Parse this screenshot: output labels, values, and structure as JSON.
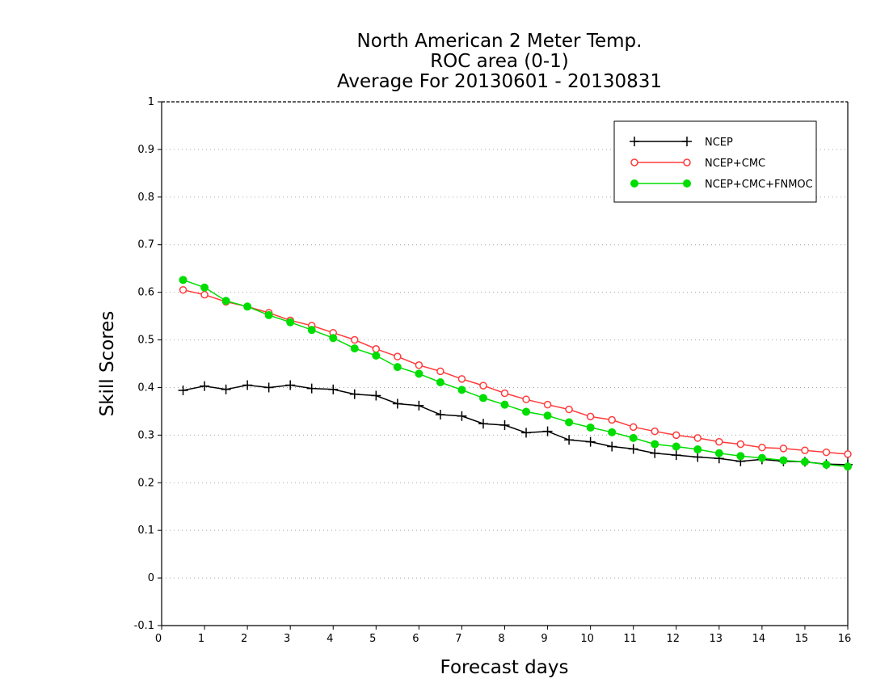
{
  "chart_data": {
    "type": "line",
    "title": [
      "North American 2 Meter Temp.",
      "ROC area (0-1)",
      "Average For 20130601 - 20130831"
    ],
    "xlabel": "Forecast days",
    "ylabel": "Skill Scores",
    "xlim": [
      0,
      16
    ],
    "ylim": [
      -0.1,
      1
    ],
    "xticks": [
      0,
      1,
      2,
      3,
      4,
      5,
      6,
      7,
      8,
      9,
      10,
      11,
      12,
      13,
      14,
      15,
      16
    ],
    "xtick_labels": [
      "0",
      "1",
      "2",
      "3",
      "4",
      "5",
      "6",
      "7",
      "8",
      "9",
      "10",
      "11",
      "12",
      "13",
      "14",
      "15",
      "16"
    ],
    "yticks": [
      -0.1,
      0,
      0.1,
      0.2,
      0.3,
      0.4,
      0.5,
      0.6,
      0.7,
      0.8,
      0.9,
      1
    ],
    "ytick_labels": [
      "-0.1",
      "0",
      "0.1",
      "0.2",
      "0.3",
      "0.4",
      "0.5",
      "0.6",
      "0.7",
      "0.8",
      "0.9",
      "1"
    ],
    "grid": "horizontal dotted",
    "legend_position": "top-right",
    "x": [
      0.5,
      1.0,
      1.5,
      2.0,
      2.5,
      3.0,
      3.5,
      4.0,
      4.5,
      5.0,
      5.5,
      6.0,
      6.5,
      7.0,
      7.5,
      8.0,
      8.5,
      9.0,
      9.5,
      10.0,
      10.5,
      11.0,
      11.5,
      12.0,
      12.5,
      13.0,
      13.5,
      14.0,
      14.5,
      15.0,
      15.5,
      16.0
    ],
    "series": [
      {
        "name": "NCEP",
        "color": "#000000",
        "marker": "plus",
        "values": [
          0.394,
          0.403,
          0.396,
          0.405,
          0.4,
          0.405,
          0.398,
          0.396,
          0.386,
          0.383,
          0.366,
          0.362,
          0.343,
          0.34,
          0.324,
          0.321,
          0.305,
          0.308,
          0.29,
          0.286,
          0.276,
          0.271,
          0.262,
          0.258,
          0.254,
          0.251,
          0.245,
          0.249,
          0.245,
          0.244,
          0.239,
          0.238
        ]
      },
      {
        "name": "NCEP+CMC",
        "color": "#ff3b3b",
        "marker": "open-circle",
        "values": [
          0.605,
          0.595,
          0.58,
          0.57,
          0.557,
          0.541,
          0.53,
          0.515,
          0.5,
          0.481,
          0.465,
          0.447,
          0.434,
          0.418,
          0.404,
          0.388,
          0.375,
          0.364,
          0.354,
          0.339,
          0.332,
          0.317,
          0.308,
          0.3,
          0.294,
          0.286,
          0.281,
          0.274,
          0.272,
          0.268,
          0.264,
          0.26
        ]
      },
      {
        "name": "NCEP+CMC+FNMOC",
        "color": "#00dd00",
        "marker": "filled-circle",
        "values": [
          0.626,
          0.61,
          0.582,
          0.57,
          0.552,
          0.537,
          0.521,
          0.504,
          0.482,
          0.467,
          0.443,
          0.429,
          0.411,
          0.395,
          0.378,
          0.364,
          0.349,
          0.341,
          0.327,
          0.316,
          0.306,
          0.294,
          0.281,
          0.276,
          0.27,
          0.262,
          0.256,
          0.252,
          0.247,
          0.244,
          0.238,
          0.234
        ]
      }
    ]
  }
}
